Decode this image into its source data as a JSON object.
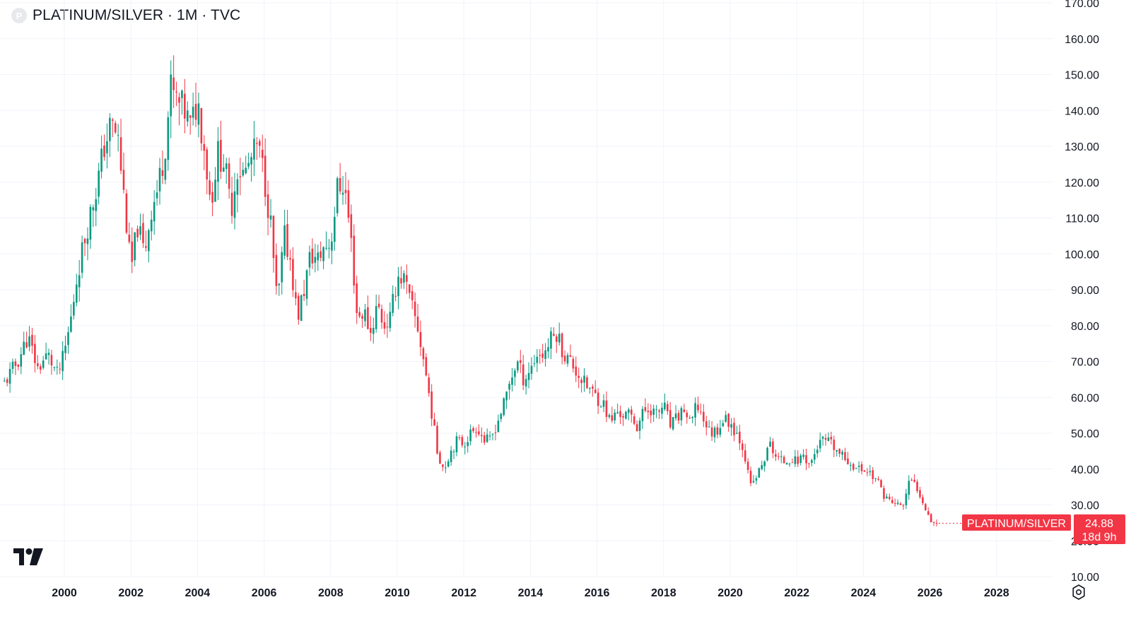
{
  "header": {
    "symbol_icon": "P",
    "title": "PLATINUM/SILVER · 1M · TVC"
  },
  "price_tag": {
    "label": "PLATINUM/SILVER",
    "price": "24.88",
    "countdown": "18d 9h",
    "color": "#f23645"
  },
  "colors": {
    "up": "#089981",
    "down": "#f23645",
    "grid": "#f0f3fa"
  },
  "icons": {
    "logo": "tradingview-logo-icon",
    "settings": "settings-icon"
  },
  "chart_data": {
    "type": "candlestick",
    "title": "PLATINUM/SILVER · 1M · TVC",
    "xlabel": "",
    "ylabel": "",
    "x_ticks": [
      "2000",
      "2002",
      "2004",
      "2006",
      "2008",
      "2010",
      "2012",
      "2014",
      "2016",
      "2018",
      "2020",
      "2022",
      "2024",
      "2026",
      "2028"
    ],
    "y_ticks": [
      "10.00",
      "20.00",
      "30.00",
      "40.00",
      "50.00",
      "60.00",
      "70.00",
      "80.00",
      "90.00",
      "100.00",
      "110.00",
      "120.00",
      "130.00",
      "140.00",
      "150.00",
      "160.00",
      "170.00"
    ],
    "ylim": [
      10,
      170
    ],
    "xlim": [
      1998.15,
      2029.6
    ],
    "grid": true,
    "last_price": 24.88,
    "series": [
      {
        "description": "approximate monthly close (year, value)",
        "points": [
          [
            1998.2,
            64
          ],
          [
            1998.6,
            70
          ],
          [
            1998.9,
            77
          ],
          [
            1999.2,
            68
          ],
          [
            1999.5,
            72
          ],
          [
            1999.8,
            66
          ],
          [
            2000.0,
            72
          ],
          [
            2000.2,
            82
          ],
          [
            2000.4,
            95
          ],
          [
            2000.7,
            108
          ],
          [
            2001.0,
            120
          ],
          [
            2001.2,
            130
          ],
          [
            2001.4,
            136
          ],
          [
            2001.6,
            133
          ],
          [
            2001.8,
            115
          ],
          [
            2002.0,
            95
          ],
          [
            2002.2,
            108
          ],
          [
            2002.4,
            100
          ],
          [
            2002.6,
            112
          ],
          [
            2002.8,
            118
          ],
          [
            2003.0,
            128
          ],
          [
            2003.2,
            146
          ],
          [
            2003.4,
            142
          ],
          [
            2003.6,
            140
          ],
          [
            2003.8,
            135
          ],
          [
            2004.0,
            143
          ],
          [
            2004.2,
            130
          ],
          [
            2004.4,
            114
          ],
          [
            2004.6,
            128
          ],
          [
            2004.8,
            126
          ],
          [
            2005.0,
            112
          ],
          [
            2005.2,
            124
          ],
          [
            2005.4,
            122
          ],
          [
            2005.6,
            126
          ],
          [
            2005.8,
            130
          ],
          [
            2006.0,
            122
          ],
          [
            2006.2,
            108
          ],
          [
            2006.4,
            85
          ],
          [
            2006.6,
            105
          ],
          [
            2006.8,
            98
          ],
          [
            2007.0,
            82
          ],
          [
            2007.2,
            90
          ],
          [
            2007.4,
            100
          ],
          [
            2007.6,
            98
          ],
          [
            2007.8,
            102
          ],
          [
            2008.0,
            103
          ],
          [
            2008.2,
            118
          ],
          [
            2008.4,
            120
          ],
          [
            2008.6,
            105
          ],
          [
            2008.8,
            82
          ],
          [
            2009.0,
            84
          ],
          [
            2009.2,
            78
          ],
          [
            2009.4,
            86
          ],
          [
            2009.6,
            80
          ],
          [
            2009.8,
            82
          ],
          [
            2010.0,
            94
          ],
          [
            2010.2,
            93
          ],
          [
            2010.4,
            86
          ],
          [
            2010.6,
            80
          ],
          [
            2010.8,
            70
          ],
          [
            2011.0,
            58
          ],
          [
            2011.2,
            45
          ],
          [
            2011.4,
            40
          ],
          [
            2011.6,
            45
          ],
          [
            2011.8,
            48
          ],
          [
            2012.0,
            47
          ],
          [
            2012.2,
            50
          ],
          [
            2012.4,
            52
          ],
          [
            2012.6,
            48
          ],
          [
            2012.8,
            48
          ],
          [
            2013.0,
            53
          ],
          [
            2013.2,
            58
          ],
          [
            2013.4,
            65
          ],
          [
            2013.6,
            70
          ],
          [
            2013.8,
            65
          ],
          [
            2014.0,
            68
          ],
          [
            2014.2,
            72
          ],
          [
            2014.4,
            72
          ],
          [
            2014.6,
            76
          ],
          [
            2014.8,
            78
          ],
          [
            2015.0,
            72
          ],
          [
            2015.2,
            70
          ],
          [
            2015.4,
            67
          ],
          [
            2015.6,
            64
          ],
          [
            2015.8,
            62
          ],
          [
            2016.0,
            60
          ],
          [
            2016.2,
            58
          ],
          [
            2016.4,
            53
          ],
          [
            2016.6,
            56
          ],
          [
            2016.8,
            55
          ],
          [
            2017.0,
            55
          ],
          [
            2017.2,
            52
          ],
          [
            2017.4,
            56
          ],
          [
            2017.6,
            57
          ],
          [
            2017.8,
            55
          ],
          [
            2018.0,
            58
          ],
          [
            2018.2,
            52
          ],
          [
            2018.4,
            54
          ],
          [
            2018.6,
            57
          ],
          [
            2018.8,
            52
          ],
          [
            2019.0,
            58
          ],
          [
            2019.2,
            54
          ],
          [
            2019.4,
            50
          ],
          [
            2019.6,
            51
          ],
          [
            2019.8,
            54
          ],
          [
            2020.0,
            53
          ],
          [
            2020.2,
            50
          ],
          [
            2020.4,
            46
          ],
          [
            2020.6,
            35
          ],
          [
            2020.8,
            38
          ],
          [
            2021.0,
            42
          ],
          [
            2021.2,
            47
          ],
          [
            2021.4,
            43
          ],
          [
            2021.6,
            42
          ],
          [
            2021.8,
            43
          ],
          [
            2022.0,
            42
          ],
          [
            2022.2,
            44
          ],
          [
            2022.4,
            41
          ],
          [
            2022.6,
            46
          ],
          [
            2022.8,
            48
          ],
          [
            2023.0,
            47
          ],
          [
            2023.2,
            45
          ],
          [
            2023.4,
            43
          ],
          [
            2023.6,
            42
          ],
          [
            2023.8,
            40
          ],
          [
            2024.0,
            40
          ],
          [
            2024.2,
            39
          ],
          [
            2024.4,
            37
          ],
          [
            2024.6,
            33
          ],
          [
            2024.8,
            31
          ],
          [
            2025.0,
            30
          ],
          [
            2025.2,
            30
          ],
          [
            2025.4,
            37
          ],
          [
            2025.6,
            35
          ],
          [
            2025.8,
            31
          ],
          [
            2026.0,
            26
          ],
          [
            2026.2,
            24.88
          ]
        ]
      }
    ]
  }
}
